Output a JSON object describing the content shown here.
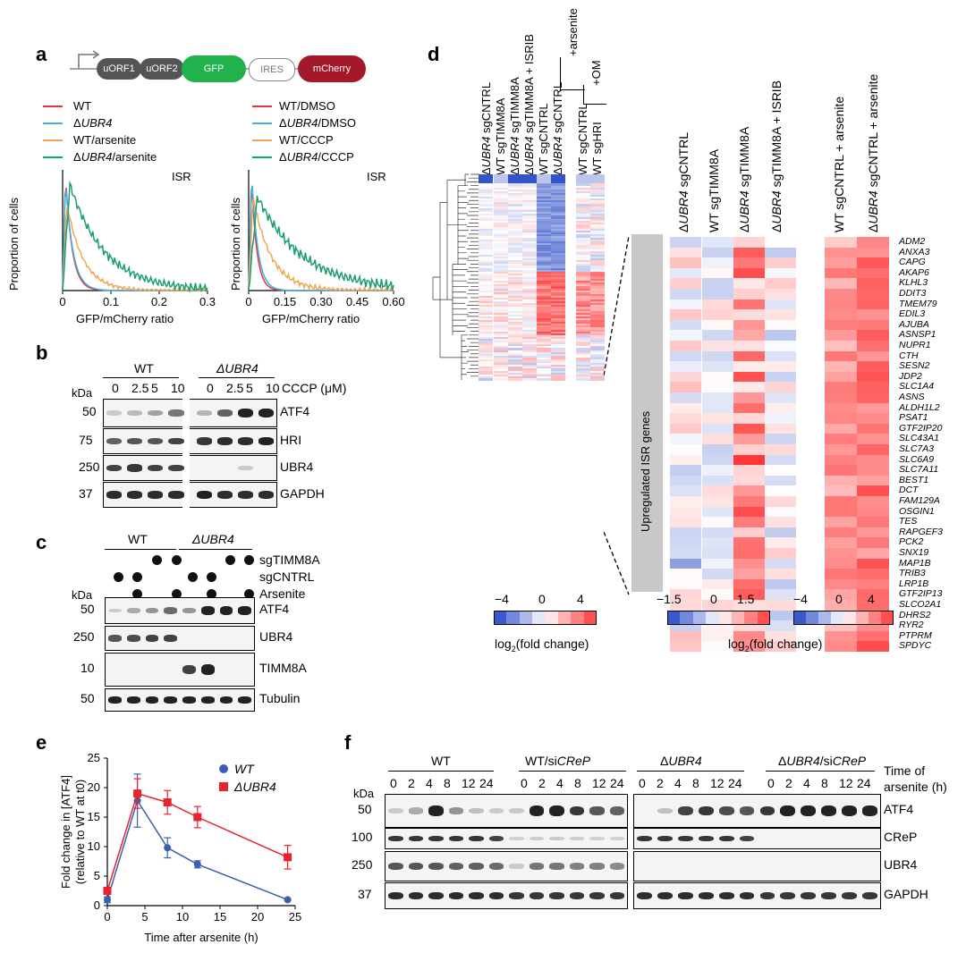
{
  "panels": {
    "a": "a",
    "b": "b",
    "c": "c",
    "d": "d",
    "e": "e",
    "f": "f"
  },
  "a": {
    "construct": [
      "uORF1",
      "uORF2",
      "GFP",
      "IRES",
      "mCherry"
    ],
    "left_legend": [
      {
        "label": "WT",
        "color": "#e8333a"
      },
      {
        "label": "ΔUBR4",
        "color": "#3ab1e0"
      },
      {
        "label": "WT/arsenite",
        "color": "#f2a553"
      },
      {
        "label": "ΔUBR4/arsenite",
        "color": "#1a9e6c"
      }
    ],
    "right_legend": [
      {
        "label": "WT/DMSO",
        "color": "#e8333a"
      },
      {
        "label": "ΔUBR4/DMSO",
        "color": "#3ab1e0"
      },
      {
        "label": "WT/CCCP",
        "color": "#f2a553"
      },
      {
        "label": "ΔUBR4/CCCP",
        "color": "#1a9e6c"
      }
    ],
    "isr_label": "ISR",
    "ylabel": "Proportion of cells",
    "xlabel": "GFP/mCherry ratio",
    "left_ticks": [
      "0",
      "0.1",
      "0.2",
      "0.3"
    ],
    "right_ticks": [
      "0",
      "0.15",
      "0.30",
      "0.45",
      "0.60"
    ]
  },
  "b": {
    "groups": [
      "WT",
      "ΔUBR4"
    ],
    "conc": [
      "0",
      "2.5",
      "5",
      "10",
      "0",
      "2.5",
      "5",
      "10"
    ],
    "unit": "CCCP (μM)",
    "kda": "kDa",
    "markers": [
      "50",
      "75",
      "250",
      "37"
    ],
    "rows": [
      "ATF4",
      "HRI",
      "UBR4",
      "GAPDH"
    ]
  },
  "c": {
    "groups": [
      "WT",
      "ΔUBR4"
    ],
    "conditions": [
      "sgTIMM8A",
      "sgCNTRL",
      "Arsenite"
    ],
    "kda": "kDa",
    "markers": [
      "50",
      "250",
      "10",
      "50"
    ],
    "rows": [
      "ATF4",
      "UBR4",
      "TIMM8A",
      "Tubulin"
    ]
  },
  "d": {
    "left_columns": [
      "ΔUBR4 sgCNTRL",
      "WT sgTIMM8A",
      "ΔUBR4 sgTIMM8A",
      "ΔUBR4 sgTIMM8A + ISRIB",
      "WT sgCNTRL",
      "ΔUBR4 sgCNTRL",
      "WT sgCNTRL",
      "WT sgHRI"
    ],
    "arsenite_label": "+arsenite",
    "om_label": "+OM",
    "right_columns_1": [
      "ΔUBR4 sgCNTRL",
      "WT sgTIMM8A",
      "ΔUBR4 sgTIMM8A",
      "ΔUBR4 sgTIMM8A + ISRIB"
    ],
    "right_columns_2": [
      "WT sgCNTRL + arsenite",
      "ΔUBR4 sgCNTRL + arsenite"
    ],
    "side_label": "Upregulated ISR genes",
    "genes": [
      "ADM2",
      "ANXA3",
      "CAPG",
      "AKAP6",
      "KLHL3",
      "DDIT3",
      "TMEM79",
      "EDIL3",
      "AJUBA",
      "ASNSP1",
      "NUPR1",
      "CTH",
      "SESN2",
      "JDP2",
      "SLC1A4",
      "ASNS",
      "ALDH1L2",
      "PSAT1",
      "GTF2IP20",
      "SLC43A1",
      "SLC7A3",
      "SLC6A9",
      "SLC7A11",
      "BEST1",
      "DCT",
      "FAM129A",
      "OSGIN1",
      "TES",
      "RAPGEF3",
      "PCK2",
      "SNX19",
      "MAP1B",
      "TRIB3",
      "LRP1B",
      "GTF2IP13",
      "SLCO2A1",
      "DHRS2",
      "RYR2",
      "PTPRM",
      "SPDYC"
    ],
    "scale1_ticks": [
      "−4",
      "0",
      "4"
    ],
    "scale2_ticks": [
      "−1.5",
      "0",
      "1.5"
    ],
    "scale3_ticks": [
      "−4",
      "0",
      "4"
    ],
    "scale_label": "log2(fold change)"
  },
  "e": {
    "ylabel": "Fold change in [ATF4]",
    "ylabel2": "(relative to WT at t0)",
    "xlabel": "Time after arsenite (h)"
  },
  "chart_data": {
    "type": "line",
    "title": "",
    "xlabel": "Time after arsenite (h)",
    "ylabel": "Fold change in [ATF4] (relative to WT at t0)",
    "x": [
      0,
      4,
      8,
      12,
      24
    ],
    "xlim": [
      0,
      25
    ],
    "ylim": [
      0,
      25
    ],
    "xticks": [
      "0",
      "5",
      "10",
      "15",
      "20",
      "25"
    ],
    "yticks": [
      "0",
      "5",
      "10",
      "15",
      "20",
      "25"
    ],
    "series": [
      {
        "name": "WT",
        "color": "#3a5fb0",
        "marker": "circle",
        "values": [
          1,
          17.8,
          9.8,
          7,
          1
        ],
        "err": [
          0.5,
          4.5,
          1.7,
          0.6,
          0.1
        ]
      },
      {
        "name": "ΔUBR4",
        "color": "#e8232e",
        "marker": "square",
        "values": [
          2.5,
          19,
          17.5,
          15,
          8.2
        ],
        "err": [
          0.3,
          2.5,
          2,
          1.8,
          2
        ]
      }
    ]
  },
  "f": {
    "groups": [
      "WT",
      "WT/siCReP",
      "ΔUBR4",
      "ΔUBR4/siCReP"
    ],
    "times": [
      "0",
      "2",
      "4",
      "8",
      "12",
      "24"
    ],
    "time_label1": "Time of",
    "time_label2": "arsenite (h)",
    "kda": "kDa",
    "markers": [
      "50",
      "100",
      "250",
      "37"
    ],
    "rows": [
      "ATF4",
      "CReP",
      "UBR4",
      "GAPDH"
    ]
  }
}
